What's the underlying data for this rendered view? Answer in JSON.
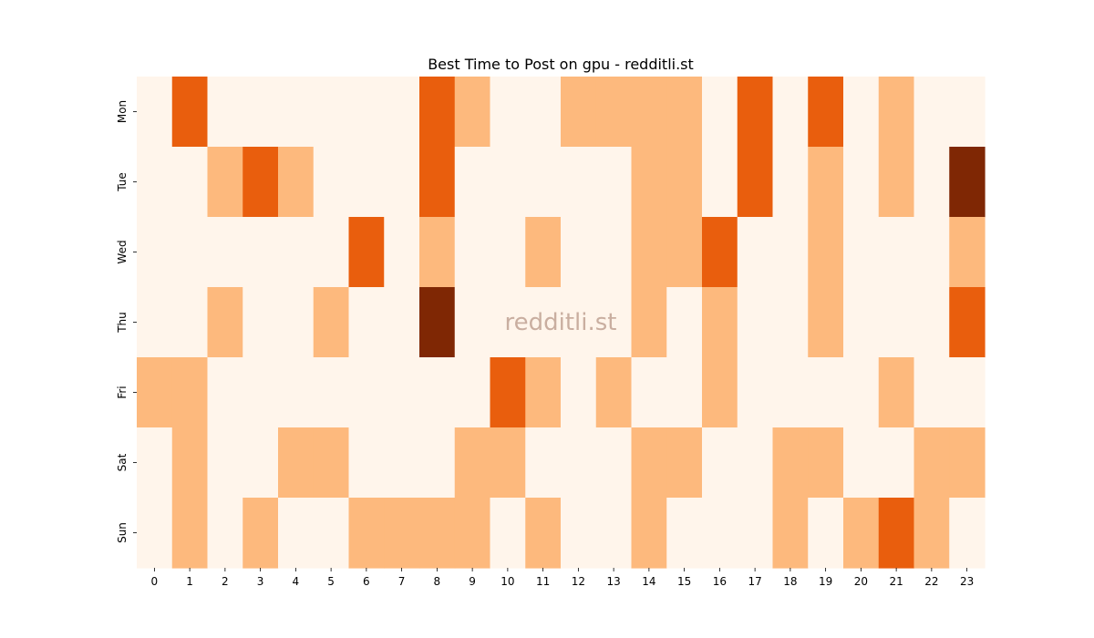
{
  "chart_data": {
    "type": "heatmap",
    "title": "Best Time to Post on gpu - redditli.st",
    "watermark": "redditli.st",
    "xlabel": "",
    "ylabel": "",
    "x_categories": [
      "0",
      "1",
      "2",
      "3",
      "4",
      "5",
      "6",
      "7",
      "8",
      "9",
      "10",
      "11",
      "12",
      "13",
      "14",
      "15",
      "16",
      "17",
      "18",
      "19",
      "20",
      "21",
      "22",
      "23"
    ],
    "y_categories": [
      "Mon",
      "Tue",
      "Wed",
      "Thu",
      "Fri",
      "Sat",
      "Sun"
    ],
    "values": [
      [
        0,
        2,
        0,
        0,
        0,
        0,
        0,
        0,
        2,
        1,
        0,
        0,
        1,
        1,
        1,
        1,
        0,
        2,
        0,
        2,
        0,
        1,
        0,
        0
      ],
      [
        0,
        0,
        1,
        2,
        1,
        0,
        0,
        0,
        2,
        0,
        0,
        0,
        0,
        0,
        1,
        1,
        0,
        2,
        0,
        1,
        0,
        1,
        0,
        3
      ],
      [
        0,
        0,
        0,
        0,
        0,
        0,
        2,
        0,
        1,
        0,
        0,
        1,
        0,
        0,
        1,
        1,
        2,
        0,
        0,
        1,
        0,
        0,
        0,
        1
      ],
      [
        0,
        0,
        1,
        0,
        0,
        1,
        0,
        0,
        3,
        0,
        0,
        0,
        0,
        0,
        1,
        0,
        1,
        0,
        0,
        1,
        0,
        0,
        0,
        2
      ],
      [
        1,
        1,
        0,
        0,
        0,
        0,
        0,
        0,
        0,
        0,
        2,
        1,
        0,
        1,
        0,
        0,
        1,
        0,
        0,
        0,
        0,
        1,
        0,
        0
      ],
      [
        0,
        1,
        0,
        0,
        1,
        1,
        0,
        0,
        0,
        1,
        1,
        0,
        0,
        0,
        1,
        1,
        0,
        0,
        1,
        1,
        0,
        0,
        1,
        1
      ],
      [
        0,
        1,
        0,
        1,
        0,
        0,
        1,
        1,
        1,
        1,
        0,
        1,
        0,
        0,
        1,
        0,
        0,
        0,
        1,
        0,
        1,
        2,
        1,
        0
      ]
    ],
    "value_range": [
      0,
      3
    ],
    "colors": [
      "#fff5eb",
      "#fdb97d",
      "#e95e0d",
      "#7f2704"
    ],
    "grid": false,
    "legend": "none"
  }
}
